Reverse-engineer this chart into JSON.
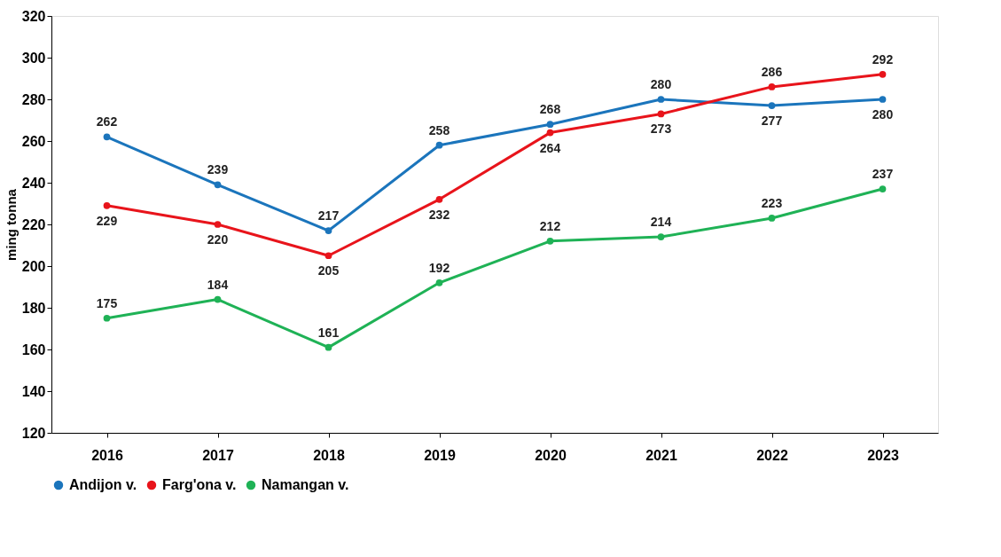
{
  "chart_data": {
    "type": "line",
    "ylabel": "ming tonna",
    "categories": [
      "2016",
      "2017",
      "2018",
      "2019",
      "2020",
      "2021",
      "2022",
      "2023"
    ],
    "series": [
      {
        "name": "Andijon v.",
        "color": "#1b75bc",
        "values": [
          262,
          239,
          217,
          258,
          268,
          280,
          277,
          280
        ]
      },
      {
        "name": "Farg'ona v.",
        "color": "#e8141b",
        "values": [
          229,
          220,
          205,
          232,
          264,
          273,
          286,
          292
        ]
      },
      {
        "name": "Namangan v.",
        "color": "#1fb256",
        "values": [
          175,
          184,
          161,
          192,
          212,
          214,
          223,
          237
        ]
      }
    ],
    "ylim": [
      120,
      320
    ],
    "yticks": [
      120,
      140,
      160,
      180,
      200,
      220,
      240,
      260,
      280,
      300,
      320
    ],
    "data_labels": true,
    "legend": "bottom",
    "grid": false,
    "marker": "circle",
    "line_style": "solid"
  }
}
